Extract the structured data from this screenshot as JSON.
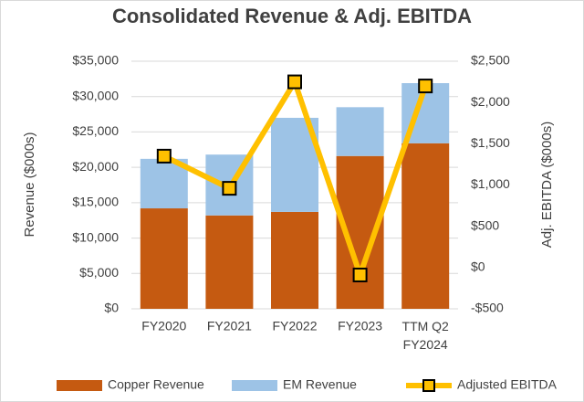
{
  "chart_data": {
    "type": "bar-line",
    "title": "Consolidated Revenue & Adj. EBITDA",
    "y_label": "Revenue ($000s)",
    "y2_label": "Adj. EBITDA ($000s)",
    "categories": [
      "FY2020",
      "FY2021",
      "FY2022",
      "FY2023",
      "TTM Q2 FY2024"
    ],
    "series": [
      {
        "name": "Copper Revenue",
        "color": "#c55a11",
        "kind": "bar",
        "values": [
          14200,
          13200,
          13700,
          21600,
          23400
        ]
      },
      {
        "name": "EM Revenue",
        "color": "#9dc3e6",
        "kind": "bar",
        "values": [
          7000,
          8600,
          13300,
          6900,
          8500
        ]
      },
      {
        "name": "Adjusted EBITDA",
        "color": "#ffc000",
        "kind": "line",
        "axis": "y2",
        "values": [
          1350,
          960,
          2250,
          -90,
          2200
        ]
      }
    ],
    "stacked": true,
    "ylim": [
      0,
      35000
    ],
    "yticks": [
      {
        "value": 0,
        "label": "$0"
      },
      {
        "value": 5000,
        "label": "$5,000"
      },
      {
        "value": 10000,
        "label": "$10,000"
      },
      {
        "value": 15000,
        "label": "$15,000"
      },
      {
        "value": 20000,
        "label": "$20,000"
      },
      {
        "value": 25000,
        "label": "$25,000"
      },
      {
        "value": 30000,
        "label": "$30,000"
      },
      {
        "value": 35000,
        "label": "$35,000"
      }
    ],
    "y2lim": [
      -500,
      2500
    ],
    "y2ticks": [
      {
        "value": -500,
        "label": "-$500"
      },
      {
        "value": 0,
        "label": "$0"
      },
      {
        "value": 500,
        "label": "$500"
      },
      {
        "value": 1000,
        "label": "$1,000"
      },
      {
        "value": 1500,
        "label": "$1,500"
      },
      {
        "value": 2000,
        "label": "$2,000"
      },
      {
        "value": 2500,
        "label": "$2,500"
      }
    ],
    "grid": true,
    "legend": "bottom"
  }
}
